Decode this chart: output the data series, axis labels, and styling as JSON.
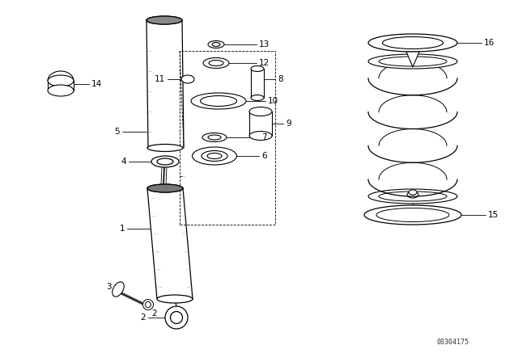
{
  "bg_color": "#ffffff",
  "line_color": "#000000",
  "watermark": "00304175",
  "figsize": [
    6.4,
    4.48
  ],
  "dpi": 100
}
